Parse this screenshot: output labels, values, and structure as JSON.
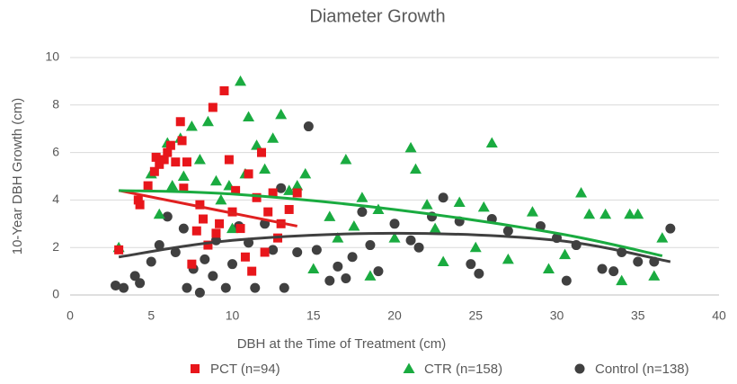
{
  "chart_data": {
    "type": "scatter",
    "title": "Diameter Growth",
    "x_label": "DBH at the Time of Treatment (cm)",
    "y_label": "10-Year DBH Growth (cm)",
    "xlim": [
      0,
      40
    ],
    "xticks": [
      0,
      5,
      10,
      15,
      20,
      25,
      30,
      35,
      40
    ],
    "ylim": [
      0,
      10
    ],
    "yticks": [
      0,
      2,
      4,
      6,
      8,
      10
    ],
    "grid": true,
    "legend": "bottom",
    "series": [
      {
        "name": "PCT (n=94)",
        "color": "#e8161b",
        "marker": "square",
        "x": [
          3,
          4.2,
          4.3,
          4.8,
          5.2,
          5.3,
          5.5,
          5.8,
          6,
          6.2,
          6.5,
          6.8,
          6.9,
          7,
          7.2,
          7.5,
          7.8,
          8,
          8.2,
          8.5,
          8.8,
          9,
          9.2,
          9.5,
          9.8,
          10,
          10.2,
          10.5,
          10.8,
          11,
          11.2,
          11.5,
          11.8,
          12,
          12.2,
          12.5,
          12.8,
          13,
          13.5,
          14
        ],
        "values": [
          1.9,
          4.0,
          3.8,
          4.6,
          5.2,
          5.8,
          5.5,
          5.7,
          6.0,
          6.3,
          5.6,
          7.3,
          6.5,
          4.5,
          5.6,
          1.3,
          2.7,
          3.8,
          3.2,
          2.1,
          7.9,
          2.6,
          3.0,
          8.6,
          5.7,
          3.5,
          4.4,
          2.8,
          1.6,
          5.1,
          1.0,
          4.1,
          6.0,
          1.8,
          3.5,
          4.3,
          2.4,
          3.0,
          3.6,
          4.3
        ],
        "trend": {
          "color": "#e02020",
          "x": [
            3,
            14
          ],
          "values": [
            4.4,
            2.9
          ]
        }
      },
      {
        "name": "CTR (n=158)",
        "color": "#1aab40",
        "marker": "triangle",
        "x": [
          3,
          5,
          5.5,
          6,
          6.3,
          6.8,
          7,
          7.5,
          8,
          8.5,
          9,
          9.3,
          9.8,
          10,
          10.5,
          10.8,
          11,
          11.5,
          12,
          12.5,
          13,
          13.5,
          14,
          14.5,
          15,
          16,
          16.5,
          17,
          17.5,
          18,
          18.5,
          19,
          20,
          21,
          21.3,
          22,
          22.5,
          23,
          24,
          25,
          25.5,
          26,
          27,
          28.5,
          29.5,
          30.5,
          31.5,
          32,
          33,
          34,
          34.5,
          35,
          36,
          36.5
        ],
        "values": [
          2.0,
          5.1,
          3.4,
          6.4,
          4.6,
          6.6,
          5.0,
          7.1,
          5.7,
          7.3,
          4.8,
          4.0,
          4.6,
          2.8,
          9.0,
          5.1,
          7.5,
          6.3,
          5.3,
          6.6,
          7.6,
          4.4,
          4.6,
          5.1,
          1.1,
          3.3,
          2.4,
          5.7,
          2.9,
          4.1,
          0.8,
          3.6,
          2.4,
          6.2,
          5.3,
          3.8,
          2.8,
          1.4,
          3.9,
          2.0,
          3.7,
          6.4,
          1.5,
          3.5,
          1.1,
          1.7,
          4.3,
          3.4,
          3.4,
          0.6,
          3.4,
          3.4,
          0.8,
          2.4
        ],
        "trend": {
          "color": "#1aab40",
          "x": [
            3,
            10,
            20,
            30,
            36.5
          ],
          "values": [
            4.4,
            4.25,
            3.6,
            2.6,
            1.65
          ]
        }
      },
      {
        "name": "Control (n=138)",
        "color": "#404040",
        "marker": "circle",
        "x": [
          2.8,
          3.3,
          4,
          4.3,
          5,
          5.5,
          6,
          6.5,
          7,
          7.2,
          7.6,
          8,
          8.3,
          8.8,
          9,
          9.6,
          10,
          10.4,
          11,
          11.4,
          12,
          12.5,
          13,
          13.2,
          14,
          14.7,
          15.2,
          16,
          16.5,
          17,
          17.4,
          18,
          18.5,
          19,
          20,
          21,
          21.5,
          22.3,
          23,
          24,
          24.7,
          25.2,
          26,
          27,
          29,
          30,
          30.6,
          31.2,
          32.8,
          33.5,
          34,
          35,
          36,
          37
        ],
        "values": [
          0.4,
          0.3,
          0.8,
          0.5,
          1.4,
          2.1,
          3.3,
          1.8,
          2.8,
          0.3,
          1.1,
          0.1,
          1.5,
          0.8,
          2.3,
          0.3,
          1.3,
          2.9,
          2.2,
          0.3,
          3.0,
          1.9,
          4.5,
          0.3,
          1.8,
          7.1,
          1.9,
          0.6,
          1.2,
          0.7,
          1.6,
          3.5,
          2.1,
          1.0,
          3.0,
          2.3,
          2.0,
          3.3,
          4.1,
          3.1,
          1.3,
          0.9,
          3.2,
          2.7,
          2.9,
          2.4,
          0.6,
          2.1,
          1.1,
          1.0,
          1.8,
          1.4,
          1.4,
          2.8
        ],
        "trend": {
          "color": "#404040",
          "x": [
            3,
            10,
            20,
            30,
            37
          ],
          "values": [
            1.6,
            2.3,
            2.6,
            2.3,
            1.4
          ]
        }
      }
    ]
  }
}
